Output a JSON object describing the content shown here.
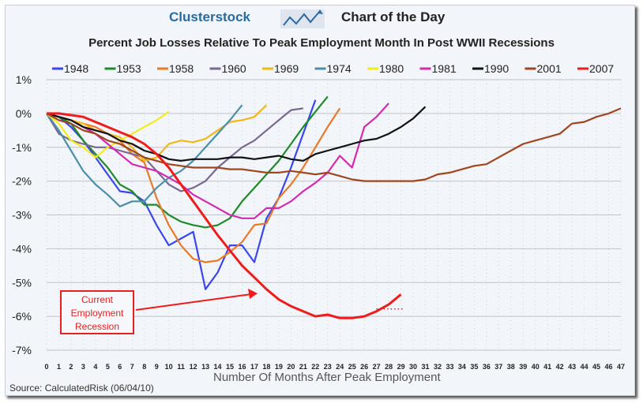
{
  "header": {
    "brand": "Clusterstock",
    "subtitle": "Chart of the Day"
  },
  "source": "Source: CalculatedRisk (06/04/10)",
  "annotation": "Current Employment Recession",
  "chart_data": {
    "type": "line",
    "title": "Percent Job Losses Relative To Peak Employment Month In Post WWII Recessions",
    "xlabel": "Number Of Months After Peak Employment",
    "ylabel": "",
    "xlim": [
      0,
      47
    ],
    "ylim": [
      -7,
      1
    ],
    "yticks": [
      "1%",
      "0%",
      "-1%",
      "-2%",
      "-3%",
      "-4%",
      "-5%",
      "-6%",
      "-7%"
    ],
    "ytick_values": [
      1,
      0,
      -1,
      -2,
      -3,
      -4,
      -5,
      -6,
      -7
    ],
    "grid": true,
    "legend_position": "top",
    "series": [
      {
        "name": "1948",
        "color": "#3a46ee",
        "values": [
          0,
          -0.1,
          -0.4,
          -0.8,
          -1.3,
          -1.8,
          -2.3,
          -2.35,
          -2.6,
          -3.3,
          -3.9,
          -3.7,
          -3.5,
          -5.2,
          -4.7,
          -3.9,
          -3.9,
          -4.4,
          -3.1,
          -2.5,
          -1.6,
          -0.6,
          0.4
        ]
      },
      {
        "name": "1953",
        "color": "#1f8a2a",
        "values": [
          0,
          -0.1,
          -0.3,
          -0.8,
          -1.2,
          -1.6,
          -2.1,
          -2.3,
          -2.7,
          -2.7,
          -3.0,
          -3.2,
          -3.3,
          -3.37,
          -3.3,
          -3.1,
          -2.6,
          -2.2,
          -1.8,
          -1.4,
          -0.9,
          -0.4,
          0.05,
          0.5
        ]
      },
      {
        "name": "1958",
        "color": "#ea7a2a",
        "values": [
          0,
          -0.1,
          -0.2,
          -0.3,
          -0.4,
          -0.6,
          -0.8,
          -1.2,
          -1.45,
          -2.5,
          -3.3,
          -3.9,
          -4.3,
          -4.4,
          -4.35,
          -4.1,
          -3.8,
          -3.3,
          -3.25,
          -2.5,
          -2.1,
          -1.6,
          -1.0,
          -0.4,
          0.15
        ]
      },
      {
        "name": "1960",
        "color": "#7a6890",
        "values": [
          0,
          -0.6,
          -0.8,
          -0.9,
          -1.0,
          -1.0,
          -1.1,
          -1.2,
          -1.3,
          -1.7,
          -2.1,
          -2.3,
          -2.2,
          -2.0,
          -1.6,
          -1.3,
          -1.0,
          -0.8,
          -0.5,
          -0.2,
          0.1,
          0.15
        ]
      },
      {
        "name": "1969",
        "color": "#f2b818",
        "values": [
          0,
          -0.1,
          -0.2,
          -0.3,
          -0.5,
          -0.6,
          -0.7,
          -1.0,
          -1.4,
          -1.3,
          -0.9,
          -0.8,
          -0.85,
          -0.75,
          -0.5,
          -0.25,
          -0.2,
          -0.1,
          0.25
        ]
      },
      {
        "name": "1974",
        "color": "#4a90a8",
        "values": [
          0,
          -0.5,
          -1.1,
          -1.7,
          -2.1,
          -2.4,
          -2.75,
          -2.6,
          -2.6,
          -2.2,
          -1.9,
          -1.7,
          -1.4,
          -1.0,
          -0.6,
          -0.2,
          0.25
        ]
      },
      {
        "name": "1980",
        "color": "#f4ec1a",
        "values": [
          0,
          -0.3,
          -0.8,
          -1.0,
          -1.3,
          -1.0,
          -0.8,
          -0.6,
          -0.4,
          -0.2,
          0.05
        ]
      },
      {
        "name": "1981",
        "color": "#d22ab0",
        "values": [
          0,
          -0.1,
          -0.2,
          -0.4,
          -0.6,
          -0.9,
          -1.2,
          -1.5,
          -1.6,
          -1.7,
          -1.9,
          -2.1,
          -2.4,
          -2.6,
          -2.8,
          -3.0,
          -3.1,
          -3.1,
          -2.8,
          -2.8,
          -2.6,
          -2.3,
          -2.05,
          -1.75,
          -1.25,
          -1.6,
          -0.4,
          -0.1,
          0.3
        ]
      },
      {
        "name": "1990",
        "color": "#111111",
        "values": [
          0,
          -0.1,
          -0.2,
          -0.4,
          -0.5,
          -0.6,
          -0.8,
          -0.9,
          -1.1,
          -1.2,
          -1.35,
          -1.4,
          -1.35,
          -1.35,
          -1.35,
          -1.3,
          -1.3,
          -1.35,
          -1.3,
          -1.25,
          -1.35,
          -1.4,
          -1.2,
          -1.1,
          -1.0,
          -0.9,
          -0.8,
          -0.75,
          -0.6,
          -0.4,
          -0.15,
          0.2
        ]
      },
      {
        "name": "2001",
        "color": "#a0461e",
        "values": [
          0,
          -0.2,
          -0.3,
          -0.5,
          -0.6,
          -0.8,
          -0.9,
          -1.1,
          -1.3,
          -1.4,
          -1.5,
          -1.55,
          -1.6,
          -1.6,
          -1.6,
          -1.65,
          -1.65,
          -1.7,
          -1.75,
          -1.75,
          -1.7,
          -1.75,
          -1.8,
          -1.75,
          -1.85,
          -1.95,
          -2.0,
          -2.0,
          -2.0,
          -2.0,
          -2.0,
          -1.95,
          -1.8,
          -1.75,
          -1.65,
          -1.55,
          -1.5,
          -1.3,
          -1.1,
          -0.9,
          -0.8,
          -0.7,
          -0.6,
          -0.3,
          -0.25,
          -0.1,
          0.0,
          0.15
        ]
      },
      {
        "name": "2007",
        "color": "#ee1c1c",
        "values": [
          0,
          0,
          -0.05,
          -0.1,
          -0.25,
          -0.4,
          -0.55,
          -0.7,
          -0.9,
          -1.2,
          -1.6,
          -2.1,
          -2.6,
          -3.1,
          -3.6,
          -4.05,
          -4.5,
          -4.85,
          -5.2,
          -5.5,
          -5.7,
          -5.85,
          -6.0,
          -5.95,
          -6.05,
          -6.05,
          -6.0,
          -5.85,
          -5.65,
          -5.35
        ]
      }
    ]
  }
}
